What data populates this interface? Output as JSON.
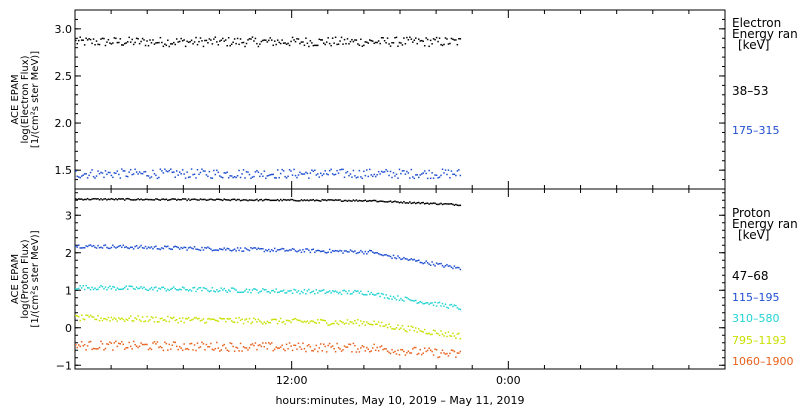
{
  "xlabel": "hours:minutes, May 10, 2019 – May 11, 2019",
  "x_tick_labels": [
    "12:00",
    "0:00"
  ],
  "chart_data": [
    {
      "type": "scatter",
      "panel": "electron",
      "ylabel_lines": [
        "ACE EPAM",
        "log(Electron Flux)",
        "[1/(cm²s ster MeV)]"
      ],
      "ylim": [
        1.3,
        3.2
      ],
      "y_ticks": [
        1.5,
        2.0,
        2.5,
        3.0
      ],
      "y_tick_labels": [
        "1.5",
        "2.0",
        "2.5",
        "3.0"
      ],
      "x_hours_range": [
        0,
        36
      ],
      "data_x_hours_range": [
        0,
        21.3
      ],
      "legend_title_lines": [
        "Electron",
        "Energy ran",
        "[keV]"
      ],
      "series": [
        {
          "name": "38–53",
          "color": "#000000",
          "mean_flux": 2.87,
          "spread": 0.05
        },
        {
          "name": "175–315",
          "color": "#1f4fd1",
          "mean_flux": 1.47,
          "spread": 0.05
        }
      ]
    },
    {
      "type": "scatter",
      "panel": "proton",
      "ylabel_lines": [
        "ACE EPAM",
        "log(Proton Flux)",
        "[1/(cm²s ster MeV)]"
      ],
      "ylim": [
        -1.1,
        3.7
      ],
      "y_ticks": [
        -1,
        0,
        1,
        2,
        3
      ],
      "y_tick_labels": [
        "−1",
        "0",
        "1",
        "2",
        "3"
      ],
      "x_hours_range": [
        0,
        36
      ],
      "data_x_hours_range": [
        0,
        21.3
      ],
      "legend_title_lines": [
        "Proton",
        "Energy ran",
        "[keV]"
      ],
      "series": [
        {
          "name": "47–68",
          "color": "#000000",
          "start_flux": 3.45,
          "end_flux": 3.3,
          "spread": 0.02
        },
        {
          "name": "115–195",
          "color": "#1f4fd1",
          "start_flux": 2.2,
          "end_flux": 1.6,
          "spread": 0.05
        },
        {
          "name": "310–580",
          "color": "#22d3d3",
          "start_flux": 1.1,
          "end_flux": 0.55,
          "spread": 0.06
        },
        {
          "name": "795–1193",
          "color": "#c8e000",
          "start_flux": 0.28,
          "end_flux": -0.2,
          "spread": 0.08
        },
        {
          "name": "1060–1900",
          "color": "#e8601c",
          "start_flux": -0.45,
          "end_flux": -0.7,
          "spread": 0.12
        }
      ]
    }
  ]
}
